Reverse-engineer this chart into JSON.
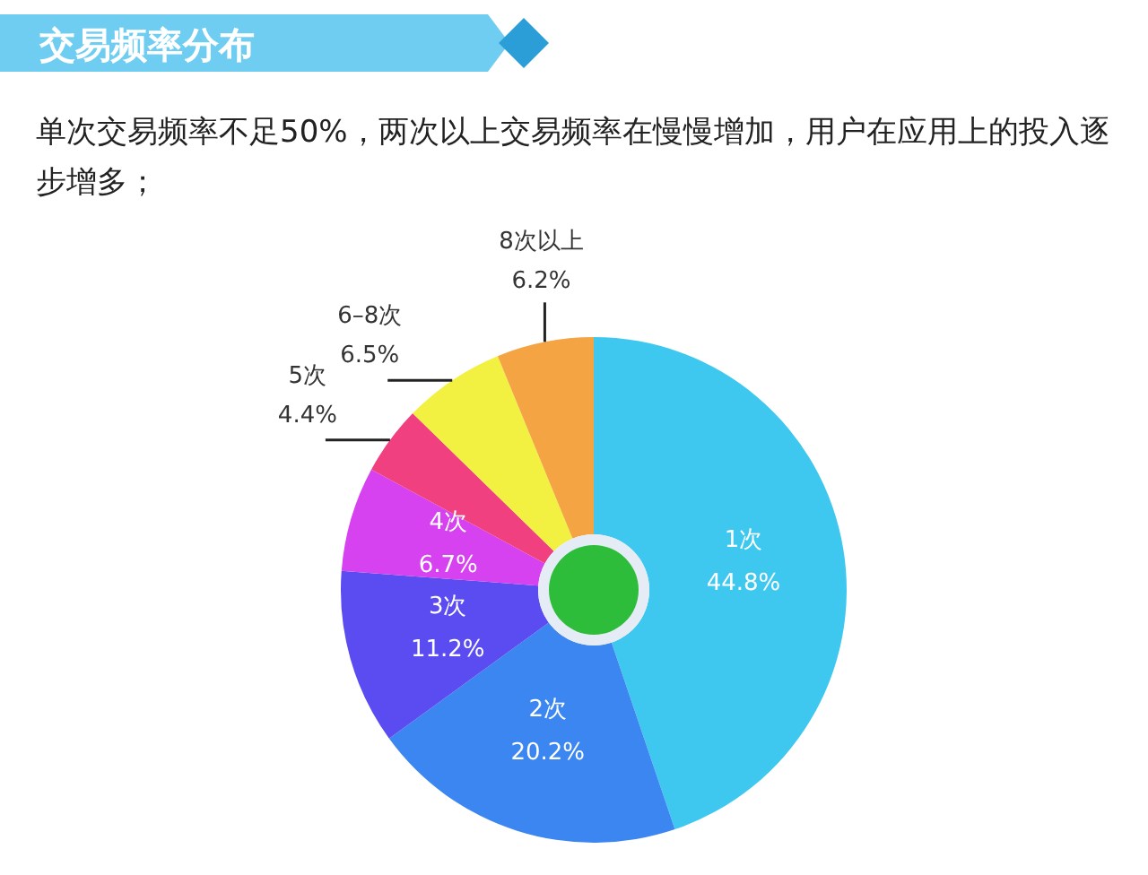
{
  "chart_data": {
    "type": "donut",
    "title": "交易频率分布",
    "subtitle": "单次交易频率不足50%，两次以上交易频率在慢慢增加，用户在应用上的投入逐步增多；",
    "categories": [
      "1次",
      "2次",
      "3次",
      "4次",
      "5次",
      "6–8次",
      "8次以上"
    ],
    "values": [
      44.8,
      20.2,
      11.2,
      6.7,
      4.4,
      6.5,
      6.2
    ],
    "colors": [
      "#3ec8ef",
      "#3b86f0",
      "#5a4cf0",
      "#d642ef",
      "#f0407f",
      "#f2f040",
      "#f4a443"
    ],
    "value_labels": [
      "44.8%",
      "20.2%",
      "11.2%",
      "6.7%",
      "4.4%",
      "6.5%",
      "6.2%"
    ],
    "legend": false
  }
}
